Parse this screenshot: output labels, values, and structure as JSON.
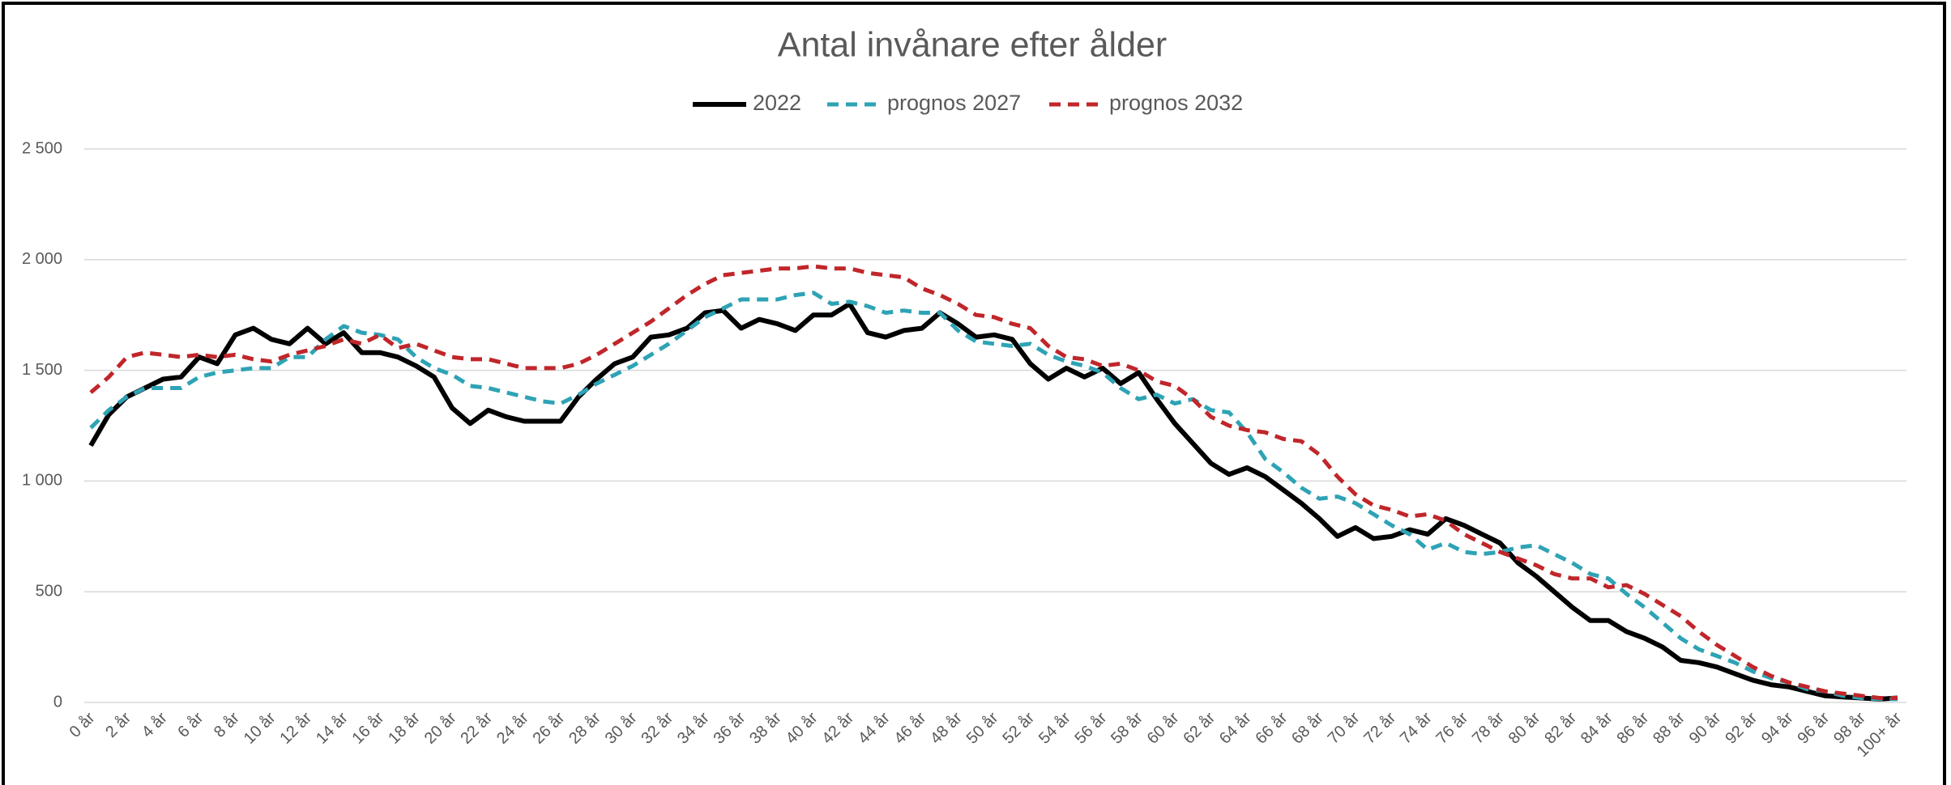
{
  "chart_data": {
    "type": "line",
    "title": "Antal invånare efter ålder",
    "categories": [
      "0 år",
      null,
      "2 år",
      null,
      "4 år",
      null,
      "6 år",
      null,
      "8 år",
      null,
      "10 år",
      null,
      "12 år",
      null,
      "14 år",
      null,
      "16 år",
      null,
      "18 år",
      null,
      "20 år",
      null,
      "22 år",
      null,
      "24 år",
      null,
      "26 år",
      null,
      "28 år",
      null,
      "30 år",
      null,
      "32 år",
      null,
      "34 år",
      null,
      "36 år",
      null,
      "38 år",
      null,
      "40 år",
      null,
      "42 år",
      null,
      "44 år",
      null,
      "46 år",
      null,
      "48 år",
      null,
      "50 år",
      null,
      "52 år",
      null,
      "54 år",
      null,
      "56 år",
      null,
      "58 år",
      null,
      "60 år",
      null,
      "62 år",
      null,
      "64 år",
      null,
      "66 år",
      null,
      "68 år",
      null,
      "70 år",
      null,
      "72 år",
      null,
      "74 år",
      null,
      "76 år",
      null,
      "78 år",
      null,
      "80 år",
      null,
      "82 år",
      null,
      "84 år",
      null,
      "86 år",
      null,
      "88 år",
      null,
      "90 år",
      null,
      "92 år",
      null,
      "94 år",
      null,
      "96 år",
      null,
      "98 år",
      null,
      "100+ år"
    ],
    "series": [
      {
        "name": "2022",
        "color": "#000000",
        "line_style": "solid",
        "values": [
          1160,
          1300,
          1380,
          1420,
          1460,
          1470,
          1560,
          1530,
          1660,
          1690,
          1640,
          1620,
          1690,
          1620,
          1670,
          1580,
          1580,
          1560,
          1520,
          1470,
          1330,
          1260,
          1320,
          1290,
          1270,
          1270,
          1270,
          1380,
          1460,
          1530,
          1560,
          1650,
          1660,
          1690,
          1760,
          1770,
          1690,
          1730,
          1710,
          1680,
          1750,
          1750,
          1800,
          1670,
          1650,
          1680,
          1690,
          1760,
          1710,
          1650,
          1660,
          1640,
          1530,
          1460,
          1510,
          1470,
          1510,
          1440,
          1490,
          1370,
          1260,
          1170,
          1080,
          1030,
          1060,
          1020,
          960,
          900,
          830,
          750,
          790,
          740,
          750,
          780,
          760,
          830,
          800,
          760,
          720,
          630,
          570,
          500,
          430,
          370,
          370,
          320,
          290,
          250,
          190,
          180,
          160,
          130,
          100,
          80,
          70,
          50,
          30,
          25,
          20,
          15,
          20
        ]
      },
      {
        "name": "prognos 2027",
        "color": "#2ea3b5",
        "line_style": "dashed",
        "values": [
          1240,
          1320,
          1380,
          1420,
          1420,
          1420,
          1470,
          1490,
          1500,
          1510,
          1510,
          1560,
          1560,
          1640,
          1700,
          1670,
          1660,
          1640,
          1560,
          1510,
          1480,
          1430,
          1420,
          1400,
          1380,
          1360,
          1350,
          1390,
          1440,
          1480,
          1520,
          1570,
          1620,
          1680,
          1740,
          1780,
          1820,
          1820,
          1820,
          1840,
          1850,
          1800,
          1810,
          1790,
          1760,
          1770,
          1760,
          1760,
          1680,
          1630,
          1620,
          1610,
          1620,
          1570,
          1540,
          1520,
          1490,
          1420,
          1370,
          1390,
          1350,
          1370,
          1320,
          1310,
          1220,
          1100,
          1040,
          970,
          920,
          930,
          900,
          850,
          800,
          760,
          690,
          720,
          680,
          670,
          680,
          700,
          710,
          670,
          630,
          580,
          560,
          490,
          430,
          360,
          290,
          240,
          210,
          180,
          140,
          110,
          90,
          60,
          50,
          30,
          20,
          15,
          15
        ]
      },
      {
        "name": "prognos 2032",
        "color": "#c0262a",
        "line_style": "dashed",
        "values": [
          1400,
          1470,
          1560,
          1580,
          1570,
          1560,
          1570,
          1560,
          1570,
          1550,
          1540,
          1570,
          1590,
          1610,
          1640,
          1620,
          1660,
          1600,
          1620,
          1590,
          1560,
          1550,
          1550,
          1530,
          1510,
          1510,
          1510,
          1530,
          1570,
          1620,
          1670,
          1720,
          1780,
          1840,
          1890,
          1930,
          1940,
          1950,
          1960,
          1960,
          1970,
          1960,
          1960,
          1940,
          1930,
          1920,
          1870,
          1840,
          1800,
          1750,
          1740,
          1710,
          1690,
          1610,
          1560,
          1550,
          1520,
          1530,
          1500,
          1450,
          1430,
          1370,
          1290,
          1250,
          1230,
          1220,
          1190,
          1180,
          1120,
          1020,
          940,
          890,
          870,
          840,
          850,
          820,
          760,
          720,
          680,
          650,
          620,
          580,
          560,
          560,
          520,
          530,
          490,
          440,
          390,
          320,
          260,
          210,
          160,
          120,
          90,
          70,
          50,
          40,
          30,
          20,
          20
        ]
      }
    ],
    "ylim": [
      0,
      2500
    ],
    "yticks": [
      0,
      500,
      {
        "value": 1000,
        "label": "1 000"
      },
      {
        "value": 1500,
        "label": "1 500"
      },
      {
        "value": 2000,
        "label": "2 000"
      },
      {
        "value": 2500,
        "label": "2 500"
      }
    ],
    "grid": true,
    "legend": "top"
  }
}
